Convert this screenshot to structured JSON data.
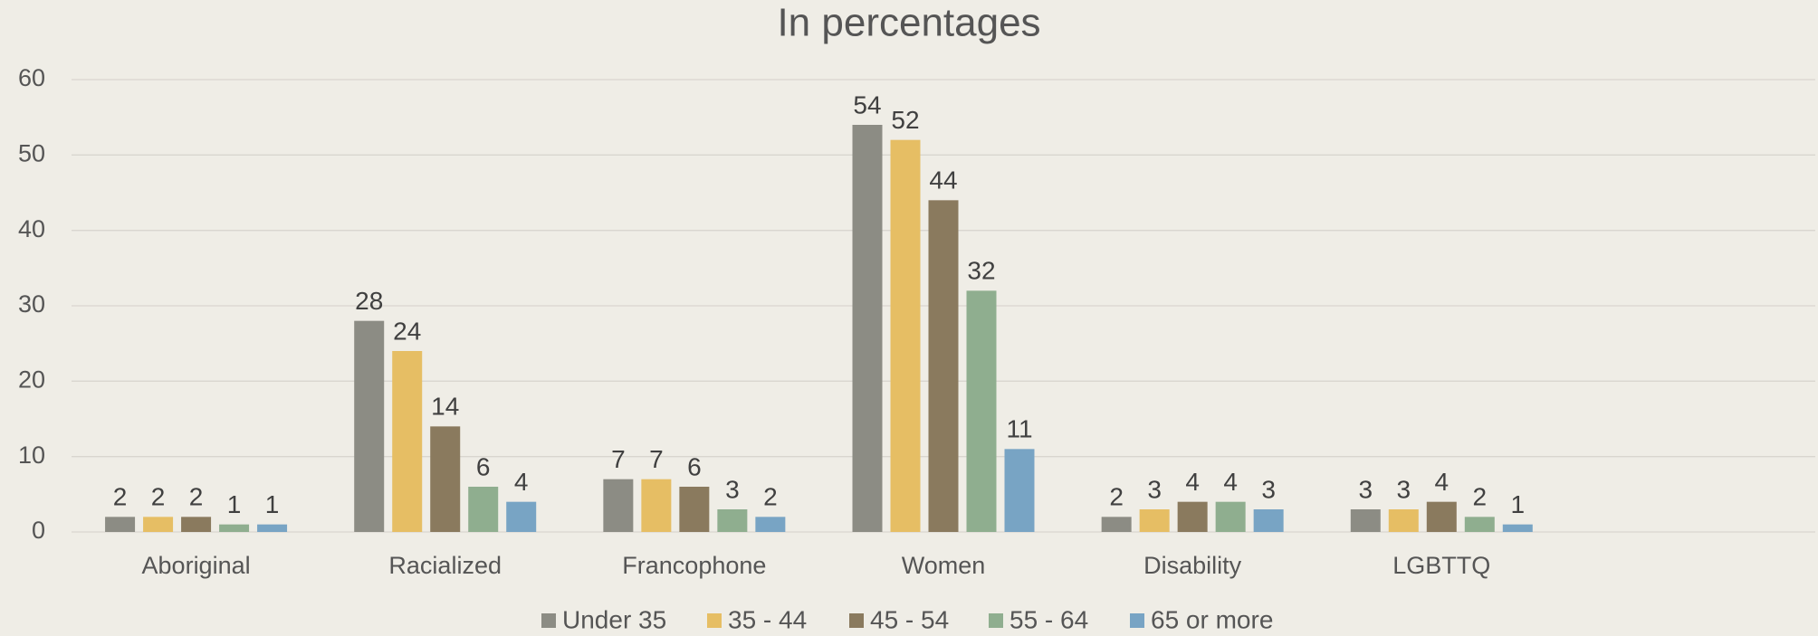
{
  "chart_data": {
    "type": "bar",
    "title": "In percentages",
    "categories": [
      "Aboriginal",
      "Racialized",
      "Francophone",
      "Women",
      "Disability",
      "LGBTTQ",
      null
    ],
    "series": [
      {
        "name": "Under 35",
        "color": "#8c8c84",
        "values": [
          2,
          28,
          7,
          54,
          2,
          3,
          null
        ]
      },
      {
        "name": "35 - 44",
        "color": "#e6be64",
        "values": [
          2,
          24,
          7,
          52,
          3,
          3,
          null
        ]
      },
      {
        "name": "45 - 54",
        "color": "#8a7a5e",
        "values": [
          2,
          14,
          6,
          44,
          4,
          4,
          null
        ]
      },
      {
        "name": "55 - 64",
        "color": "#8fae8f",
        "values": [
          1,
          6,
          3,
          32,
          4,
          2,
          null
        ]
      },
      {
        "name": "65 or more",
        "color": "#78a4c4",
        "values": [
          1,
          4,
          2,
          11,
          3,
          1,
          null
        ]
      }
    ],
    "ylim": [
      0,
      60
    ],
    "yticks": [
      0,
      10,
      20,
      30,
      40,
      50,
      60
    ],
    "grid": true,
    "legend": "bottom"
  }
}
